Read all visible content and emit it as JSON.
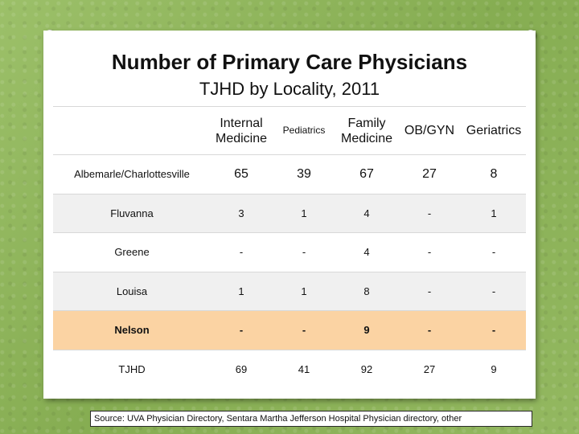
{
  "title": "Number of Primary Care Physicians",
  "subtitle": "TJHD by Locality, 2011",
  "table": {
    "headers": {
      "internal_medicine": [
        "Internal",
        "Medicine"
      ],
      "pediatrics": "Pediatrics",
      "family_medicine": [
        "Family",
        "Medicine"
      ],
      "obgyn": "OB/GYN",
      "geriatrics": "Geriatrics"
    },
    "rows": [
      {
        "locality": "Albemarle/Charlottesville",
        "values": [
          "65",
          "39",
          "67",
          "27",
          "8"
        ]
      },
      {
        "locality": "Fluvanna",
        "values": [
          "3",
          "1",
          "4",
          "-",
          "1"
        ]
      },
      {
        "locality": "Greene",
        "values": [
          "-",
          "-",
          "4",
          "-",
          "-"
        ]
      },
      {
        "locality": "Louisa",
        "values": [
          "1",
          "1",
          "8",
          "-",
          "-"
        ]
      },
      {
        "locality": "Nelson",
        "values": [
          "-",
          "-",
          "9",
          "-",
          "-"
        ]
      },
      {
        "locality": "TJHD",
        "values": [
          "69",
          "41",
          "92",
          "27",
          "9"
        ]
      }
    ],
    "highlight_row": "Nelson",
    "highlight_color": "#fbd3a3"
  },
  "source": "Source:  UVA Physician Directory, Sentara Martha Jefferson Hospital Physician directory, other",
  "colors": {
    "background": "#8db25a",
    "alt_row": "#f0f0f0"
  }
}
